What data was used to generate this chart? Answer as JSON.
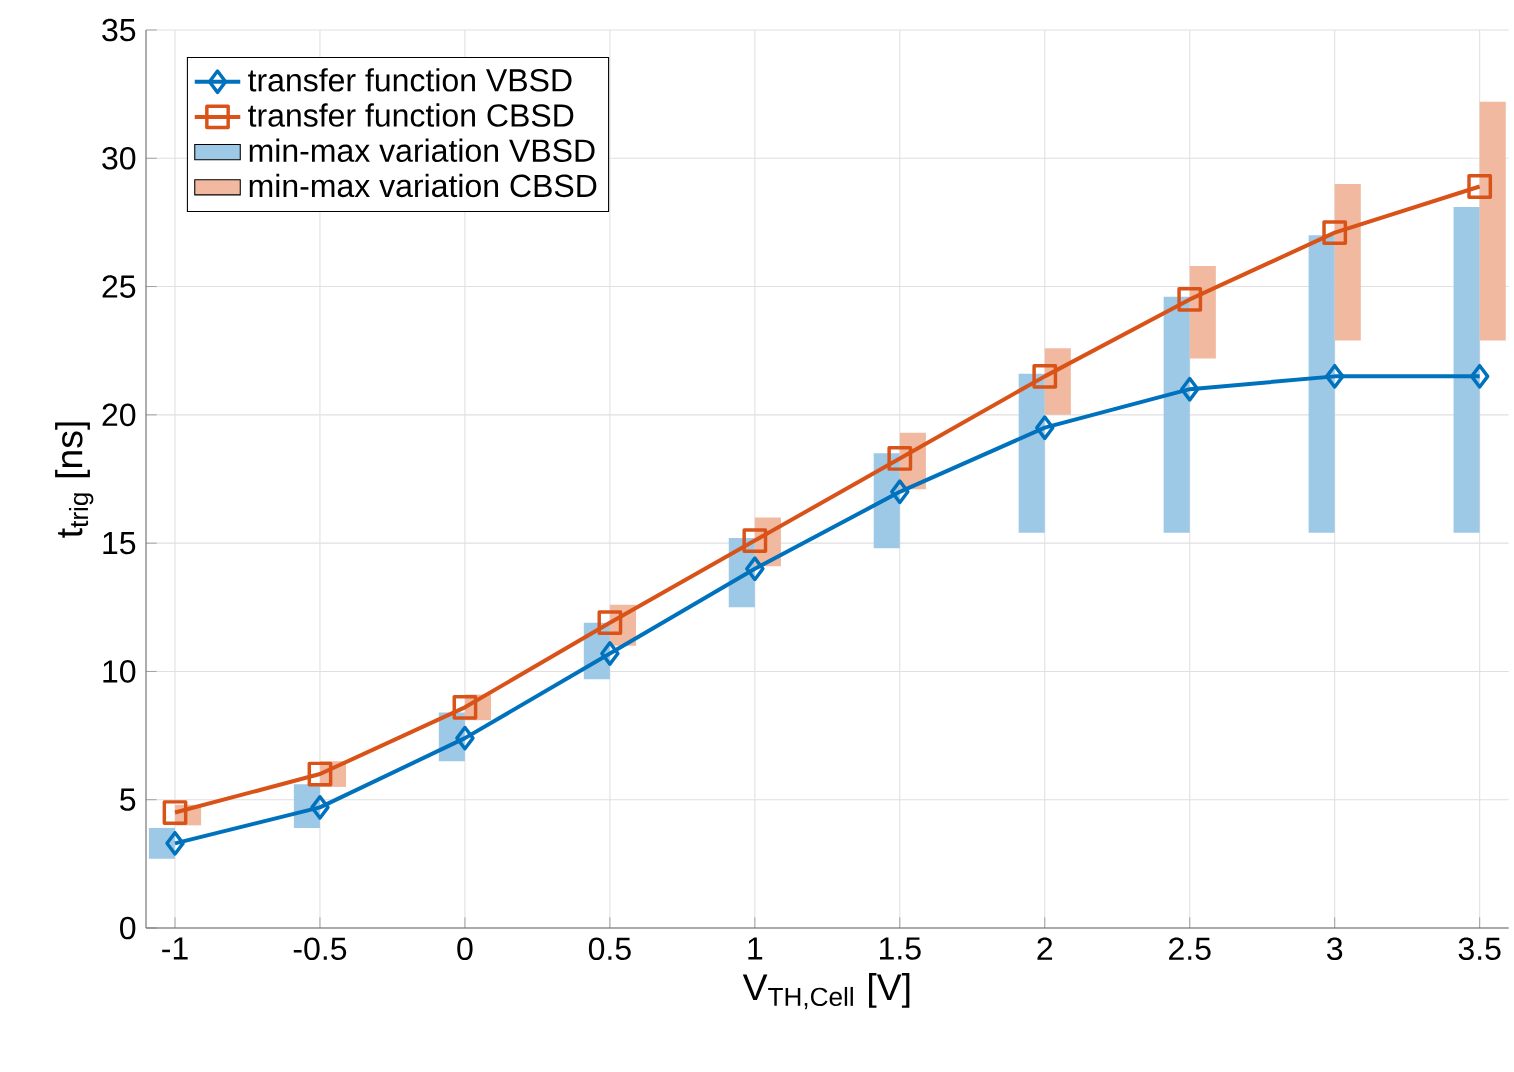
{
  "chart_data": {
    "type": "line",
    "xlabel": "V$_{TH,Cell}$ [V]",
    "ylabel": "t$_{trig}$ [ns]",
    "xlim": [
      -1.1,
      3.6
    ],
    "ylim": [
      0,
      35
    ],
    "xticks": [
      -1,
      -0.5,
      0,
      0.5,
      1,
      1.5,
      2,
      2.5,
      3,
      3.5
    ],
    "yticks": [
      0,
      5,
      10,
      15,
      20,
      25,
      30,
      35
    ],
    "grid": true,
    "legend": "top left",
    "line_style": "solid",
    "series": [
      {
        "name": "transfer function VBSD",
        "marker": "diamond",
        "color": "#0072bd",
        "x": [
          -1,
          -0.5,
          0,
          0.5,
          1,
          1.5,
          2,
          2.5,
          3,
          3.5
        ],
        "values": [
          3.3,
          4.7,
          7.4,
          10.7,
          14.0,
          17.0,
          19.5,
          21.0,
          21.5,
          21.5
        ]
      },
      {
        "name": "transfer function CBSD",
        "marker": "square",
        "color": "#d95319",
        "x": [
          -1,
          -0.5,
          0,
          0.5,
          1,
          1.5,
          2,
          2.5,
          3,
          3.5
        ],
        "values": [
          4.5,
          6.0,
          8.6,
          11.9,
          15.1,
          18.3,
          21.5,
          24.5,
          27.1,
          28.9
        ]
      },
      {
        "name": "min-max variation VBSD",
        "type": "bar",
        "color": "#9dc8e6",
        "x": [
          -1,
          -0.5,
          0,
          0.5,
          1,
          1.5,
          2,
          2.5,
          3,
          3.5
        ],
        "base": [
          2.7,
          3.9,
          6.5,
          9.7,
          12.5,
          14.8,
          15.4,
          15.4,
          15.4,
          15.4
        ],
        "values": [
          1.2,
          1.7,
          1.9,
          2.2,
          2.7,
          3.7,
          6.2,
          9.2,
          11.6,
          12.7
        ]
      },
      {
        "name": "min-max variation CBSD",
        "type": "bar",
        "color": "#f1b9a0",
        "x": [
          -1,
          -0.5,
          0,
          0.5,
          1,
          1.5,
          2,
          2.5,
          3,
          3.5
        ],
        "base": [
          4.0,
          5.5,
          8.1,
          11.0,
          14.1,
          17.1,
          20.0,
          22.2,
          22.9,
          22.9
        ],
        "values": [
          0.8,
          1.0,
          1.0,
          1.6,
          1.9,
          2.2,
          2.6,
          3.6,
          6.1,
          9.3
        ]
      }
    ]
  }
}
